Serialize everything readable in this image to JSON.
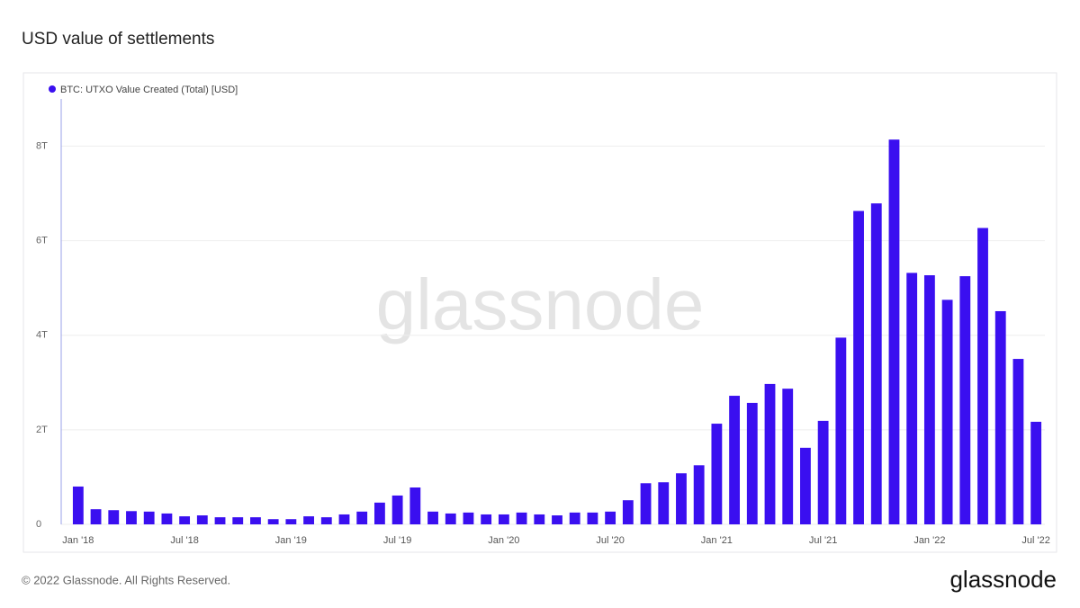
{
  "chart_data": {
    "type": "bar",
    "title": "USD value of settlements",
    "watermark": "glassnode",
    "footer": "© 2022 Glassnode. All Rights Reserved.",
    "logo": "glassnode",
    "categories": [
      "Jan '18",
      null,
      null,
      null,
      null,
      null,
      "Jul '18",
      null,
      null,
      null,
      null,
      null,
      "Jan '19",
      null,
      null,
      null,
      null,
      null,
      "Jul '19",
      null,
      null,
      null,
      null,
      null,
      "Jan '20",
      null,
      null,
      null,
      null,
      null,
      "Jul '20",
      null,
      null,
      null,
      null,
      null,
      "Jan '21",
      null,
      null,
      null,
      null,
      null,
      "Jul '21",
      null,
      null,
      null,
      null,
      null,
      "Jan '22",
      null,
      null,
      null,
      null,
      null,
      "Jul '22"
    ],
    "series": [
      {
        "name": "BTC: UTXO Value Created (Total) [USD]",
        "color": "#3a0ff0",
        "values": [
          0.8,
          0.32,
          0.3,
          0.28,
          0.27,
          0.23,
          0.17,
          0.19,
          0.15,
          0.15,
          0.15,
          0.11,
          0.11,
          0.17,
          0.15,
          0.21,
          0.27,
          0.46,
          0.61,
          0.78,
          0.27,
          0.23,
          0.25,
          0.21,
          0.21,
          0.25,
          0.21,
          0.19,
          0.25,
          0.25,
          0.27,
          0.51,
          0.87,
          0.89,
          1.08,
          1.25,
          2.13,
          2.72,
          2.57,
          2.97,
          2.87,
          1.62,
          2.19,
          3.95,
          6.63,
          6.79,
          8.14,
          5.32,
          5.27,
          4.75,
          5.25,
          6.27,
          4.51,
          3.5,
          2.17
        ]
      }
    ],
    "ylim": [
      0,
      9
    ],
    "yticks": [
      0,
      {
        "value": 2,
        "label": "2T"
      },
      {
        "value": 4,
        "label": "4T"
      },
      {
        "value": 6,
        "label": "6T"
      },
      {
        "value": 8,
        "label": "8T"
      }
    ],
    "grid": true
  }
}
